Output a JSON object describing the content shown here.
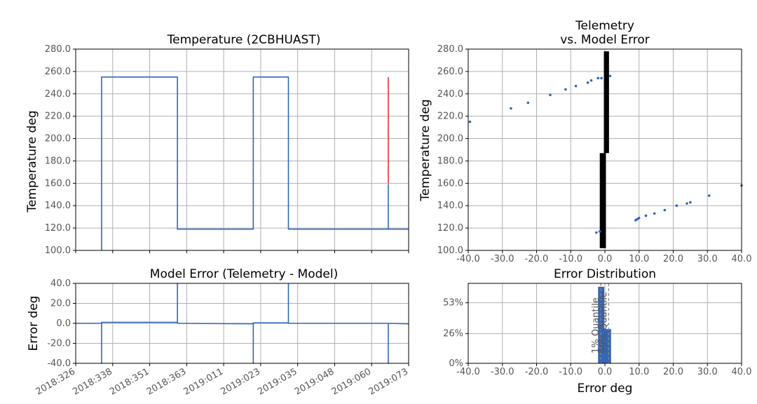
{
  "chart_data": [
    {
      "id": "temp",
      "type": "line",
      "title": "Temperature (2CBHUAST)",
      "xlabel": "",
      "ylabel": "Temperature deg",
      "x_tick_labels": [
        "2018:326",
        "2018:338",
        "2018:351",
        "2018:363",
        "2019:011",
        "2019:023",
        "2019:035",
        "2019:048",
        "2019:060",
        "2019:073"
      ],
      "xlim": [
        0,
        9
      ],
      "ylim": [
        100,
        280
      ],
      "y_ticks": [
        "100.0",
        "120.0",
        "140.0",
        "160.0",
        "180.0",
        "200.0",
        "220.0",
        "240.0",
        "260.0",
        "280.0"
      ],
      "grid": true,
      "series": [
        {
          "color": "#3366bb",
          "x": [
            0.7,
            0.7,
            0.7,
            2.75,
            2.75,
            4.8,
            4.8,
            5.75,
            5.75,
            8.45,
            8.45,
            8.45,
            9.0
          ],
          "y": [
            100,
            255,
            255,
            255,
            119,
            119,
            255,
            255,
            119,
            119,
            159,
            119,
            119
          ]
        },
        {
          "color": "#dd3333",
          "x": [
            8.45,
            8.45
          ],
          "y": [
            160,
            255
          ]
        }
      ]
    },
    {
      "id": "error_time",
      "type": "line",
      "title": "Model Error (Telemetry - Model)",
      "xlabel": "",
      "ylabel": "Error deg",
      "x_tick_labels": [
        "2018:326",
        "2018:338",
        "2018:351",
        "2018:363",
        "2019:011",
        "2019:023",
        "2019:035",
        "2019:048",
        "2019:060",
        "2019:073"
      ],
      "xlim": [
        0,
        9
      ],
      "ylim": [
        -40,
        40
      ],
      "y_ticks": [
        "-40.0",
        "-20.0",
        "0.0",
        "20.0",
        "40.0"
      ],
      "grid": true,
      "series": [
        {
          "color": "#3366bb",
          "x": [
            0,
            0.7,
            0.7,
            0.7,
            2.75,
            2.75,
            2.75,
            4.8,
            4.8,
            4.8,
            5.75,
            5.75,
            5.75,
            8.45,
            8.45,
            8.45,
            9.0
          ],
          "y": [
            0,
            0,
            -40,
            1,
            1,
            40,
            0,
            -0.5,
            -40,
            0.5,
            0.5,
            40,
            0,
            0,
            -40,
            0,
            -0.5
          ]
        }
      ]
    },
    {
      "id": "telem_vs_error",
      "type": "scatter",
      "title": "Telemetry\nvs. Model Error",
      "xlabel": "",
      "ylabel": "Temperature deg",
      "xlim": [
        -40,
        40
      ],
      "ylim": [
        100,
        280
      ],
      "x_ticks": [
        "-40.0",
        "-30.0",
        "-20.0",
        "-10.0",
        "0.0",
        "10.0",
        "20.0",
        "30.0",
        "40.0"
      ],
      "y_ticks": [
        "100.0",
        "120.0",
        "140.0",
        "160.0",
        "180.0",
        "200.0",
        "220.0",
        "240.0",
        "260.0",
        "280.0"
      ],
      "grid": true,
      "points": {
        "color": "#3366bb",
        "x": [
          -39.5,
          -27.5,
          -22.5,
          -16,
          -11.5,
          -8.5,
          -5,
          -4,
          -2,
          -1,
          1.5,
          9,
          9.5,
          10,
          12,
          14.5,
          17.5,
          21,
          24,
          25,
          30.5,
          40,
          -2.5,
          -1.5
        ],
        "y": [
          215,
          227,
          232,
          239,
          244,
          247,
          250,
          252,
          254,
          254,
          256,
          127,
          128,
          129,
          131,
          133,
          136,
          140,
          142,
          143,
          149,
          158,
          116,
          117
        ]
      },
      "dense_clusters": [
        {
          "color": "#000000",
          "x_range": [
            -0.3,
            1.2
          ],
          "y_range": [
            187,
            278
          ]
        },
        {
          "color": "#000000",
          "x_range": [
            -1.5,
            0.3
          ],
          "y_range": [
            102,
            187
          ]
        }
      ]
    },
    {
      "id": "error_hist",
      "type": "bar",
      "title": "Error Distribution",
      "xlabel": "Error deg",
      "ylabel": "",
      "xlim": [
        -40,
        40
      ],
      "ylim": [
        0,
        70
      ],
      "x_ticks": [
        "-40.0",
        "-30.0",
        "-20.0",
        "-10.0",
        "0.0",
        "10.0",
        "20.0",
        "30.0",
        "40.0"
      ],
      "y_tick_values": [
        0,
        26,
        53
      ],
      "y_ticks": [
        "0%",
        "26%",
        "53%"
      ],
      "grid": true,
      "bins": [
        {
          "x0": -2,
          "x1": -0.2,
          "value": 67
        },
        {
          "x0": -0.2,
          "x1": 1.8,
          "value": 30
        }
      ],
      "quantiles": [
        {
          "label": "1% Quantile",
          "value": -1.2
        },
        {
          "label": "99% Quantile",
          "value": 1.1
        }
      ]
    }
  ]
}
